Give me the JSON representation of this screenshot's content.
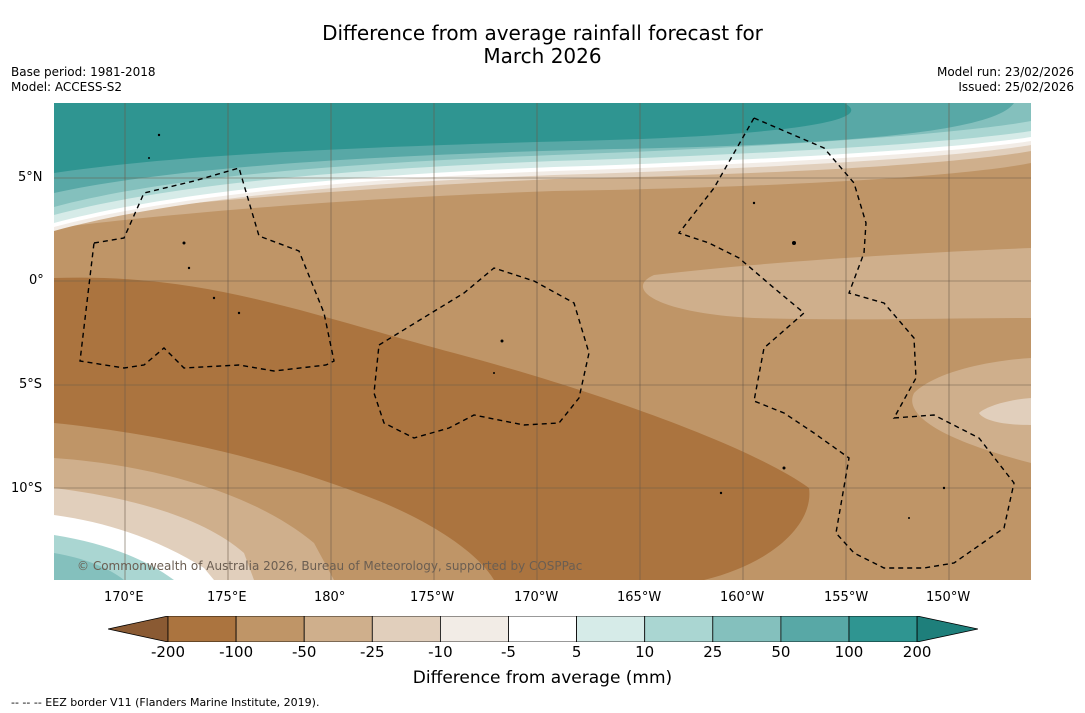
{
  "title": {
    "line1": "Difference from average rainfall forecast for",
    "line2": "March 2026"
  },
  "meta_left": {
    "base_period": "Base period: 1981-2018",
    "model": "Model: ACCESS-S2"
  },
  "meta_right": {
    "model_run": "Model run: 23/02/2026",
    "issued": "Issued: 25/02/2026"
  },
  "latitude_labels": [
    "5°N",
    "0°",
    "5°S",
    "10°S"
  ],
  "longitude_labels": [
    "170°E",
    "175°E",
    "180°",
    "175°W",
    "170°W",
    "165°W",
    "160°W",
    "155°W",
    "150°W"
  ],
  "copyright": "© Commonwealth of Australia 2026, Bureau of Meteorology, supported by COSPPac",
  "colorbar": {
    "ticks": [
      "-200",
      "-100",
      "-50",
      "-25",
      "-10",
      "-5",
      "5",
      "10",
      "25",
      "50",
      "100",
      "200"
    ],
    "colors": [
      "#8a5a33",
      "#ab743f",
      "#bf9567",
      "#cfaf8c",
      "#e1cfbc",
      "#f2ece6",
      "#ffffff",
      "#d6ebe8",
      "#aad6d2",
      "#84c0bd",
      "#58a8a6",
      "#2f9591",
      "#1e7f7b"
    ],
    "label": "Difference from average (mm)"
  },
  "legend_footer": "-- -- -- EEZ border V11 (Flanders Marine Institute, 2019)."
}
